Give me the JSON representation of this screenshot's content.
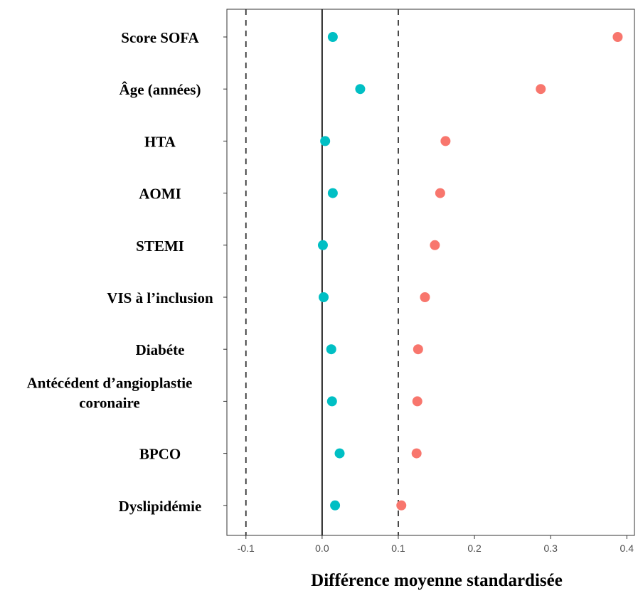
{
  "chart_data": {
    "type": "scatter",
    "title": "",
    "xlabel": "Différence moyenne standardisée",
    "ylabel": "",
    "xlim": [
      -0.125,
      0.41
    ],
    "xticks": [
      "-0.1",
      "0.0",
      "0.1",
      "0.2",
      "0.3",
      "0.4"
    ],
    "xtick_values": [
      -0.1,
      0.0,
      0.1,
      0.2,
      0.3,
      0.4
    ],
    "reference_lines": [
      {
        "x": -0.1,
        "style": "dashed"
      },
      {
        "x": 0.0,
        "style": "solid"
      },
      {
        "x": 0.1,
        "style": "dashed"
      }
    ],
    "grid": false,
    "legend": "none",
    "categories": [
      [
        "Score SOFA"
      ],
      [
        "Âge (années)"
      ],
      [
        "HTA"
      ],
      [
        "AOMI"
      ],
      [
        "STEMI"
      ],
      [
        "VIS à l’inclusion"
      ],
      [
        "Diabéte"
      ],
      [
        "Antécédent d’angioplastie",
        "coronaire"
      ],
      [
        "BPCO"
      ],
      [
        "Dyslipidémie"
      ]
    ],
    "series": [
      {
        "color": "#F8766D",
        "values": [
          0.388,
          0.287,
          0.162,
          0.155,
          0.148,
          0.135,
          0.126,
          0.125,
          0.124,
          0.104
        ]
      },
      {
        "color": "#00BFC4",
        "values": [
          0.014,
          0.05,
          0.004,
          0.014,
          0.001,
          0.002,
          0.012,
          0.013,
          0.023,
          0.017
        ]
      }
    ]
  }
}
